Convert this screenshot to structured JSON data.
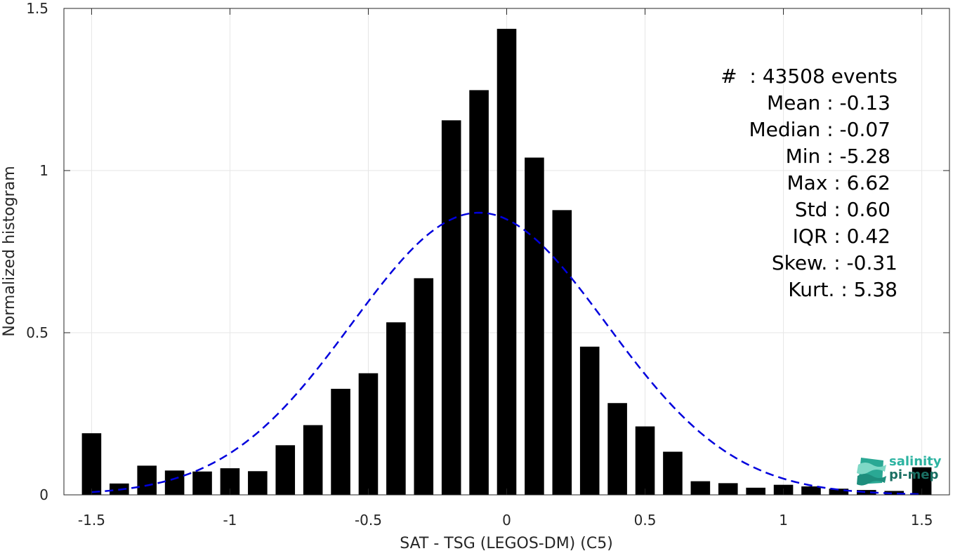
{
  "chart_data": {
    "type": "bar",
    "xlabel": "SAT - TSG (LEGOS-DM) (C5)",
    "ylabel": "Normalized histogram",
    "xlim": [
      -1.6,
      1.6
    ],
    "ylim": [
      0,
      1.5
    ],
    "xticks": [
      -1.5,
      -1,
      -0.5,
      0,
      0.5,
      1,
      1.5
    ],
    "xtick_labels": [
      "-1.5",
      "-1",
      "-0.5",
      "0",
      "0.5",
      "1",
      "1.5"
    ],
    "yticks": [
      0,
      0.5,
      1,
      1.5
    ],
    "ytick_labels": [
      "0",
      "0.5",
      "1",
      "1.5"
    ],
    "grid": true,
    "bar_width": 0.07,
    "bars": {
      "x": [
        -1.5,
        -1.4,
        -1.3,
        -1.2,
        -1.1,
        -1.0,
        -0.9,
        -0.8,
        -0.7,
        -0.6,
        -0.5,
        -0.4,
        -0.3,
        -0.2,
        -0.1,
        0.0,
        0.1,
        0.2,
        0.3,
        0.4,
        0.5,
        0.6,
        0.7,
        0.8,
        0.9,
        1.0,
        1.1,
        1.2,
        1.3,
        1.4,
        1.5
      ],
      "values": [
        0.19,
        0.035,
        0.09,
        0.075,
        0.072,
        0.082,
        0.073,
        0.153,
        0.215,
        0.327,
        0.375,
        0.532,
        0.668,
        1.155,
        1.248,
        1.437,
        1.04,
        0.878,
        0.457,
        0.283,
        0.211,
        0.133,
        0.042,
        0.036,
        0.022,
        0.031,
        0.026,
        0.019,
        0.015,
        0.012,
        0.085
      ],
      "color": "#000000"
    },
    "fit_curve": {
      "style": "dashed",
      "color": "#0000dd",
      "mean": -0.1,
      "std": 0.46,
      "peak": 0.87
    }
  },
  "stats": [
    {
      "label": "#  ",
      "sep": ": ",
      "value": "43508 events",
      "right": 1278
    },
    {
      "label": "Mean ",
      "sep": ": ",
      "value": "-0.13",
      "right": 1268
    },
    {
      "label": "Median ",
      "sep": ": ",
      "value": "-0.07",
      "right": 1268
    },
    {
      "label": "Min ",
      "sep": ": ",
      "value": "-5.28",
      "right": 1268
    },
    {
      "label": "Max ",
      "sep": ": ",
      "value": "6.62",
      "right": 1268
    },
    {
      "label": "Std ",
      "sep": ": ",
      "value": "0.60",
      "right": 1268
    },
    {
      "label": "IQR ",
      "sep": ": ",
      "value": "0.42",
      "right": 1268
    },
    {
      "label": "Skew. ",
      "sep": ": ",
      "value": "-0.31",
      "right": 1278
    },
    {
      "label": "Kurt. ",
      "sep": ": ",
      "value": "5.38",
      "right": 1278
    }
  ],
  "logo": {
    "line1": "salinity",
    "line2": "pi-mep",
    "color": "#2cb3a1"
  }
}
